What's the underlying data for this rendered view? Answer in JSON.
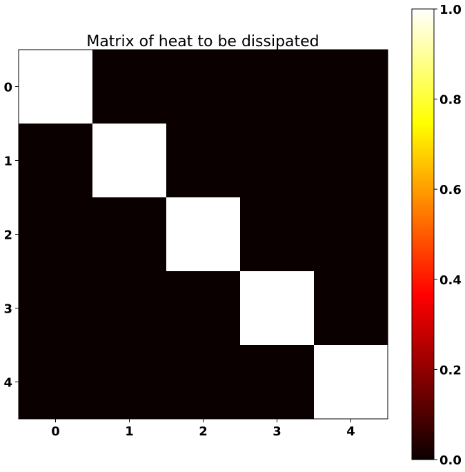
{
  "chart_data": {
    "type": "heatmap",
    "title": "Matrix of heat to be dissipated",
    "x_tick_labels": [
      "0",
      "1",
      "2",
      "3",
      "4"
    ],
    "y_tick_labels": [
      "0",
      "1",
      "2",
      "3",
      "4"
    ],
    "values": [
      [
        1,
        0,
        0,
        0,
        0
      ],
      [
        0,
        1,
        0,
        0,
        0
      ],
      [
        0,
        0,
        1,
        0,
        0
      ],
      [
        0,
        0,
        0,
        1,
        0
      ],
      [
        0,
        0,
        0,
        0,
        1
      ]
    ],
    "colormap": "hot",
    "vmin": 0.0,
    "vmax": 1.0,
    "colorbar": {
      "ticks": [
        0.0,
        0.2,
        0.4,
        0.6,
        0.8,
        1.0
      ],
      "tick_labels": [
        "0.0",
        "0.2",
        "0.4",
        "0.6",
        "0.8",
        "1.0"
      ]
    },
    "colors": {
      "hot_low": "#0b0000",
      "hot_high": "#ffffff"
    }
  }
}
